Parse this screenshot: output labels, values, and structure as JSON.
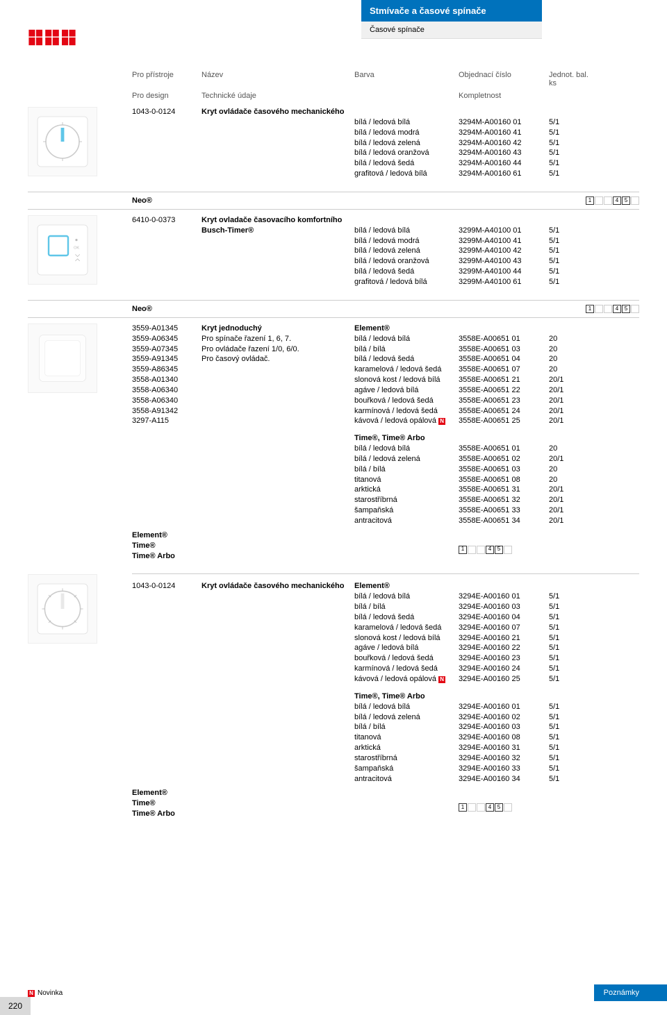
{
  "header": {
    "title": "Stmívače a časové spínače",
    "subtitle": "Časové spínače"
  },
  "columns": {
    "c1": "Pro přístroje",
    "c2": "Název",
    "c3": "Barva",
    "c4": "Objednací číslo",
    "c5": "Jednot. bal. ks",
    "s1": "Pro design",
    "s2": "Technické údaje",
    "s3": "Kompletnost"
  },
  "sec1": {
    "code": "1043-0-0124",
    "name": "Kryt ovládače časového mechanického",
    "rows": [
      {
        "color": "bílá / ledová bílá",
        "order": "3294M-A00160 01",
        "unit": "5/1"
      },
      {
        "color": "bílá / ledová modrá",
        "order": "3294M-A00160 41",
        "unit": "5/1"
      },
      {
        "color": "bílá / ledová zelená",
        "order": "3294M-A00160 42",
        "unit": "5/1"
      },
      {
        "color": "bílá / ledová oranžová",
        "order": "3294M-A00160 43",
        "unit": "5/1"
      },
      {
        "color": "bílá / ledová šedá",
        "order": "3294M-A00160 44",
        "unit": "5/1"
      },
      {
        "color": "grafitová / ledová bílá",
        "order": "3294M-A00160 61",
        "unit": "5/1"
      }
    ]
  },
  "series1": "Neo®",
  "sec2": {
    "code": "6410-0-0373",
    "name1": "Kryt ovladače časovacího komfortního",
    "name2": "Busch-Timer®",
    "rows": [
      {
        "color": "bílá / ledová bílá",
        "order": "3299M-A40100 01",
        "unit": "5/1"
      },
      {
        "color": "bílá / ledová modrá",
        "order": "3299M-A40100 41",
        "unit": "5/1"
      },
      {
        "color": "bílá / ledová zelená",
        "order": "3299M-A40100 42",
        "unit": "5/1"
      },
      {
        "color": "bílá / ledová oranžová",
        "order": "3299M-A40100 43",
        "unit": "5/1"
      },
      {
        "color": "bílá / ledová šedá",
        "order": "3299M-A40100 44",
        "unit": "5/1"
      },
      {
        "color": "grafitová / ledová bílá",
        "order": "3299M-A40100 61",
        "unit": "5/1"
      }
    ]
  },
  "series2": "Neo®",
  "sec3": {
    "codes": [
      "3559-A01345",
      "3559-A06345",
      "3559-A07345",
      "3559-A91345",
      "3559-A86345",
      "3558-A01340",
      "3558-A06340",
      "3558-A06340",
      "3558-A91342",
      "3297-A115"
    ],
    "names": [
      "Kryt jednoduchý",
      "Pro spínače řazení 1, 6, 7.",
      "Pro ovládače řazení 1/0, 6/0.",
      "Pro časový ovládač."
    ],
    "heading": "Element®",
    "rows": [
      {
        "color": "bílá / ledová bílá",
        "order": "3558E-A00651 01",
        "unit": "20"
      },
      {
        "color": "bílá / bílá",
        "order": "3558E-A00651 03",
        "unit": "20"
      },
      {
        "color": "bílá / ledová šedá",
        "order": "3558E-A00651 04",
        "unit": "20"
      },
      {
        "color": "karamelová / ledová šedá",
        "order": "3558E-A00651 07",
        "unit": "20"
      },
      {
        "color": "slonová kost / ledová bílá",
        "order": "3558E-A00651 21",
        "unit": "20/1"
      },
      {
        "color": "agáve / ledová bílá",
        "order": "3558E-A00651 22",
        "unit": "20/1"
      },
      {
        "color": "bouřková / ledová šedá",
        "order": "3558E-A00651 23",
        "unit": "20/1"
      },
      {
        "color": "karmínová / ledová šedá",
        "order": "3558E-A00651 24",
        "unit": "20/1"
      },
      {
        "color": "kávová / ledová opálová",
        "order": "3558E-A00651 25",
        "unit": "20/1",
        "n": true
      }
    ],
    "heading2": "Time®, Time® Arbo",
    "rows2": [
      {
        "color": "bílá / ledová bílá",
        "order": "3558E-A00651 01",
        "unit": "20"
      },
      {
        "color": "bílá / ledová zelená",
        "order": "3558E-A00651 02",
        "unit": "20/1"
      },
      {
        "color": "bílá / bílá",
        "order": "3558E-A00651 03",
        "unit": "20"
      },
      {
        "color": "titanová",
        "order": "3558E-A00651 08",
        "unit": "20"
      },
      {
        "color": "arktická",
        "order": "3558E-A00651 31",
        "unit": "20/1"
      },
      {
        "color": "starostříbrná",
        "order": "3558E-A00651 32",
        "unit": "20/1"
      },
      {
        "color": "šampaňská",
        "order": "3558E-A00651 33",
        "unit": "20/1"
      },
      {
        "color": "antracitová",
        "order": "3558E-A00651 34",
        "unit": "20/1"
      }
    ],
    "brands": [
      "Element®",
      "Time®",
      "Time® Arbo"
    ]
  },
  "sec4": {
    "code": "1043-0-0124",
    "name": "Kryt ovládače časového mechanického",
    "heading": "Element®",
    "rows": [
      {
        "color": "bílá / ledová bílá",
        "order": "3294E-A00160 01",
        "unit": "5/1"
      },
      {
        "color": "bílá / bílá",
        "order": "3294E-A00160 03",
        "unit": "5/1"
      },
      {
        "color": "bílá / ledová šedá",
        "order": "3294E-A00160 04",
        "unit": "5/1"
      },
      {
        "color": "karamelová / ledová šedá",
        "order": "3294E-A00160 07",
        "unit": "5/1"
      },
      {
        "color": "slonová kost / ledová bílá",
        "order": "3294E-A00160 21",
        "unit": "5/1"
      },
      {
        "color": "agáve / ledová bílá",
        "order": "3294E-A00160 22",
        "unit": "5/1"
      },
      {
        "color": "bouřková / ledová šedá",
        "order": "3294E-A00160 23",
        "unit": "5/1"
      },
      {
        "color": "karmínová / ledová šedá",
        "order": "3294E-A00160 24",
        "unit": "5/1"
      },
      {
        "color": "kávová / ledová opálová",
        "order": "3294E-A00160 25",
        "unit": "5/1",
        "n": true
      }
    ],
    "heading2": "Time®, Time® Arbo",
    "rows2": [
      {
        "color": "bílá / ledová bílá",
        "order": "3294E-A00160 01",
        "unit": "5/1"
      },
      {
        "color": "bílá / ledová zelená",
        "order": "3294E-A00160 02",
        "unit": "5/1"
      },
      {
        "color": "bílá / bílá",
        "order": "3294E-A00160 03",
        "unit": "5/1"
      },
      {
        "color": "titanová",
        "order": "3294E-A00160 08",
        "unit": "5/1"
      },
      {
        "color": "arktická",
        "order": "3294E-A00160 31",
        "unit": "5/1"
      },
      {
        "color": "starostříbrná",
        "order": "3294E-A00160 32",
        "unit": "5/1"
      },
      {
        "color": "šampaňská",
        "order": "3294E-A00160 33",
        "unit": "5/1"
      },
      {
        "color": "antracitová",
        "order": "3294E-A00160 34",
        "unit": "5/1"
      }
    ],
    "brands": [
      "Element®",
      "Time®",
      "Time® Arbo"
    ]
  },
  "footer": {
    "novinka": "Novinka",
    "poznamky": "Poznámky",
    "page": "220"
  },
  "pictos": [
    "1",
    "",
    "",
    "4",
    "5",
    ""
  ],
  "colors": {
    "brand_red": "#e30613",
    "brand_blue": "#0072bc",
    "gray_bg": "#d9d9d9"
  }
}
